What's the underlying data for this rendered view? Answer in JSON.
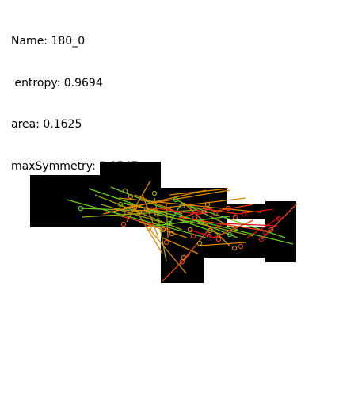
{
  "info": {
    "name_line": "Name: 180_0",
    "entropy_line": " entropy: 0.9694",
    "area_line": "area: 0.1625",
    "symmetry_line": "maxSymmetry: 0.8547"
  },
  "colors": {
    "shape": "#000000",
    "hole": "#ffffff",
    "lime": "#66cc22",
    "olive": "#99aa11",
    "orange": "#dd8800",
    "red_orange": "#ee4411",
    "red": "#dd1111"
  }
}
